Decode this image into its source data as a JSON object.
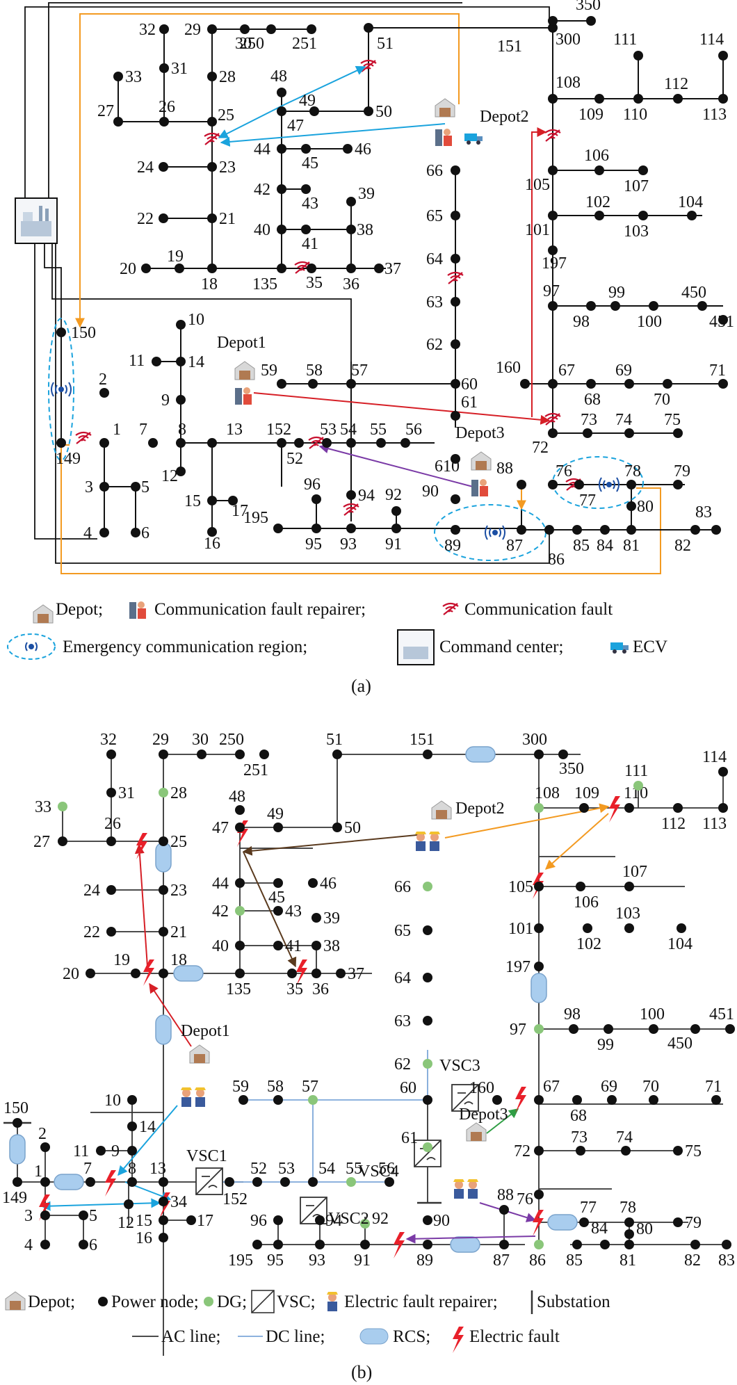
{
  "panel_a": {
    "caption": "(a)",
    "legend": {
      "depot": "Depot;",
      "repairer": "Communication fault repairer;",
      "fault": "Communication fault",
      "ecr": "Emergency communication region;",
      "command": "Command center;",
      "ecv": "ECV"
    },
    "depots": [
      "Depot1",
      "Depot2",
      "Depot3"
    ],
    "nodes": [
      "1",
      "2",
      "3",
      "4",
      "5",
      "6",
      "7",
      "8",
      "9",
      "10",
      "11",
      "12",
      "13",
      "14",
      "15",
      "16",
      "17",
      "18",
      "19",
      "20",
      "21",
      "22",
      "23",
      "24",
      "25",
      "26",
      "27",
      "28",
      "29",
      "30",
      "31",
      "32",
      "33",
      "35",
      "36",
      "37",
      "38",
      "39",
      "40",
      "41",
      "42",
      "43",
      "44",
      "45",
      "46",
      "47",
      "48",
      "49",
      "50",
      "51",
      "52",
      "53",
      "54",
      "55",
      "56",
      "57",
      "58",
      "59",
      "60",
      "61",
      "62",
      "63",
      "64",
      "65",
      "66",
      "67",
      "68",
      "69",
      "70",
      "71",
      "72",
      "73",
      "74",
      "75",
      "76",
      "77",
      "78",
      "79",
      "80",
      "81",
      "82",
      "83",
      "84",
      "85",
      "86",
      "87",
      "88",
      "89",
      "90",
      "91",
      "92",
      "93",
      "94",
      "95",
      "96",
      "97",
      "98",
      "99",
      "100",
      "101",
      "102",
      "103",
      "104",
      "105",
      "106",
      "107",
      "108",
      "109",
      "110",
      "111",
      "112",
      "113",
      "114",
      "135",
      "149",
      "150",
      "151",
      "152",
      "160",
      "195",
      "197",
      "250",
      "251",
      "300",
      "350",
      "450",
      "451",
      "610"
    ],
    "colors": {
      "line": "#111111",
      "orange": "#f39a21",
      "blue": "#1aa3dd",
      "red": "#d61f26",
      "purple": "#7a3aa6",
      "fault": "#c8102e"
    }
  },
  "panel_b": {
    "caption": "(b)",
    "legend": {
      "depot": "Depot;",
      "power_node": "Power node;",
      "dg": "DG;",
      "vsc": "VSC;",
      "repairer": "Electric fault repairer;",
      "substation": "Substation",
      "ac": "AC line;",
      "dc": "DC line;",
      "rcs": "RCS;",
      "fault": "Electric fault"
    },
    "depots": [
      "Depot1",
      "Depot2",
      "Depot3"
    ],
    "vsc": [
      "VSC1",
      "VSC2",
      "VSC3",
      "VSC4"
    ],
    "nodes": [
      "1",
      "2",
      "3",
      "4",
      "5",
      "6",
      "7",
      "8",
      "9",
      "10",
      "11",
      "12",
      "13",
      "14",
      "15",
      "16",
      "17",
      "18",
      "19",
      "20",
      "21",
      "22",
      "23",
      "24",
      "25",
      "26",
      "27",
      "28",
      "29",
      "30",
      "31",
      "32",
      "33",
      "34",
      "35",
      "36",
      "37",
      "38",
      "39",
      "40",
      "41",
      "42",
      "43",
      "44",
      "45",
      "46",
      "47",
      "48",
      "49",
      "50",
      "51",
      "52",
      "53",
      "54",
      "55",
      "56",
      "57",
      "58",
      "59",
      "60",
      "61",
      "62",
      "63",
      "64",
      "65",
      "66",
      "67",
      "68",
      "69",
      "70",
      "71",
      "72",
      "73",
      "74",
      "75",
      "76",
      "77",
      "78",
      "79",
      "80",
      "81",
      "82",
      "83",
      "84",
      "85",
      "86",
      "87",
      "88",
      "89",
      "90",
      "91",
      "92",
      "93",
      "94",
      "95",
      "96",
      "97",
      "98",
      "99",
      "100",
      "101",
      "102",
      "103",
      "104",
      "105",
      "106",
      "107",
      "108",
      "109",
      "110",
      "111",
      "112",
      "113",
      "114",
      "135",
      "149",
      "150",
      "151",
      "152",
      "160",
      "195",
      "197",
      "250",
      "251",
      "300",
      "350",
      "450",
      "451"
    ],
    "dg_nodes": [
      "33",
      "28",
      "42",
      "66",
      "62",
      "61",
      "57",
      "55",
      "92",
      "86",
      "97",
      "108",
      "111"
    ],
    "colors": {
      "dg": "#8ac67a",
      "dc": "#7da7d9",
      "rcs": "#a9cdee",
      "fault": "#e8202a",
      "orange": "#f39a21",
      "brown": "#5a3a1e",
      "red": "#d61f26",
      "blue": "#1aa3dd",
      "green": "#2f9e44",
      "purple": "#7a3aa6"
    }
  }
}
